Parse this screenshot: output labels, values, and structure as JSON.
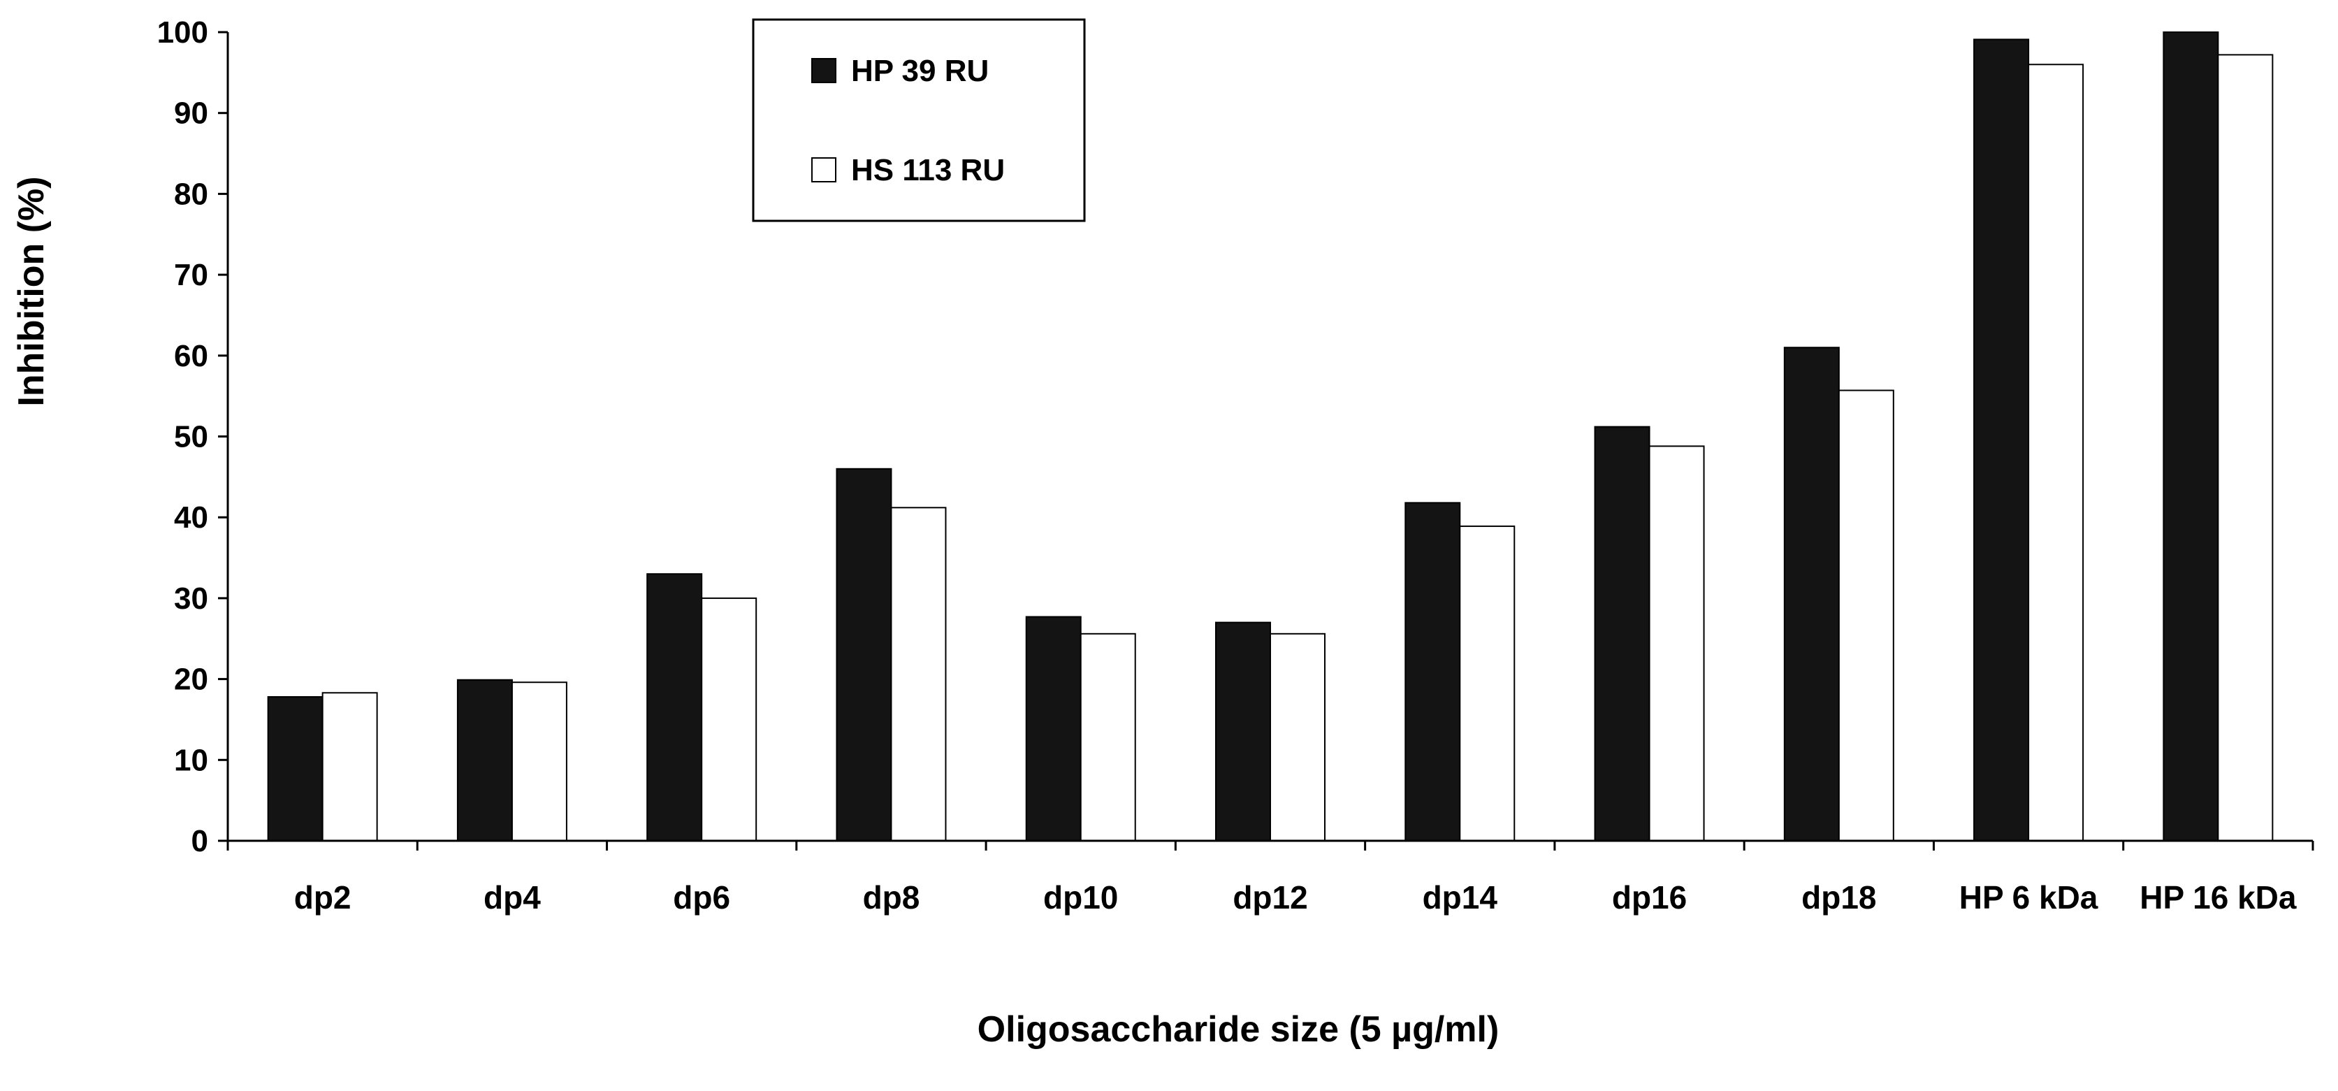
{
  "chart_data": {
    "type": "bar",
    "title": "",
    "xlabel": "Oligosaccharide size (5 µg/ml)",
    "ylabel": "Inhibition (%)",
    "ylim": [
      0,
      100
    ],
    "yticks": [
      0,
      10,
      20,
      30,
      40,
      50,
      60,
      70,
      80,
      90,
      100
    ],
    "grid": false,
    "legend_position": "top-left",
    "categories": [
      "dp2",
      "dp4",
      "dp6",
      "dp8",
      "dp10",
      "dp12",
      "dp14",
      "dp16",
      "dp18",
      "HP 6 kDa",
      "HP 16 kDa"
    ],
    "series": [
      {
        "name": "HP 39 RU",
        "color": "#141414",
        "values": [
          17.8,
          19.9,
          33.0,
          46.0,
          27.7,
          27.0,
          41.8,
          51.2,
          61.0,
          99.1,
          100.0
        ]
      },
      {
        "name": "HS 113 RU",
        "color": "#ffffff",
        "values": [
          18.3,
          19.6,
          30.0,
          41.2,
          25.6,
          25.6,
          38.9,
          48.8,
          55.7,
          96.0,
          97.2
        ]
      }
    ]
  }
}
